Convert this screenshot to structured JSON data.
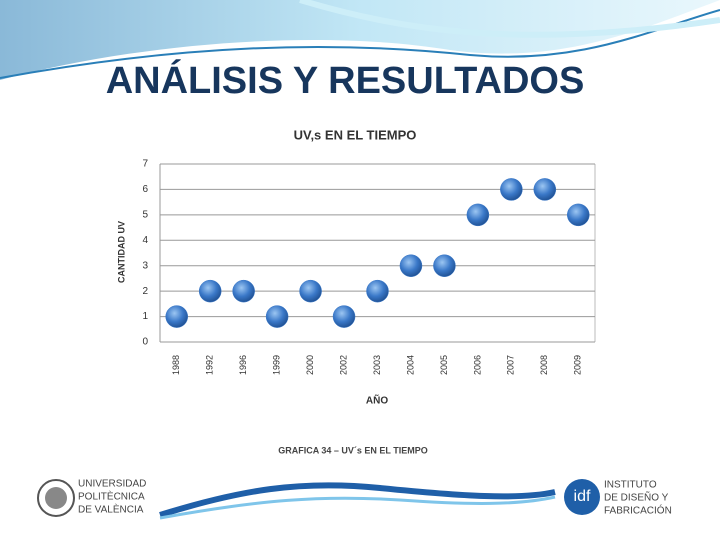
{
  "slide_title": "ANÁLISIS Y RESULTADOS",
  "caption": "GRAFICA 34 – UV´s EN EL TIEMPO",
  "logo_left": {
    "lines": [
      "UNIVERSIDAD",
      "POLITÈCNICA",
      "DE VALÈNCIA"
    ]
  },
  "logo_right": {
    "mark": "idf",
    "lines": [
      "INSTITUTO",
      "DE DISEÑO Y",
      "FABRICACIÓN"
    ]
  },
  "chart_data": {
    "type": "scatter",
    "title": "UV,s EN EL TIEMPO",
    "x_label": "AÑO",
    "y_label": "CANTIDAD UV",
    "categories": [
      "1988",
      "1992",
      "1996",
      "1999",
      "2000",
      "2002",
      "2003",
      "2004",
      "2005",
      "2006",
      "2007",
      "2008",
      "2009"
    ],
    "values": [
      1,
      2,
      2,
      1,
      2,
      1,
      2,
      3,
      3,
      5,
      6,
      6,
      5
    ],
    "color": "#3a78c8",
    "ylim": [
      0,
      7
    ],
    "yticks": [
      0,
      1,
      2,
      3,
      4,
      5,
      6,
      7
    ],
    "grid": true
  }
}
